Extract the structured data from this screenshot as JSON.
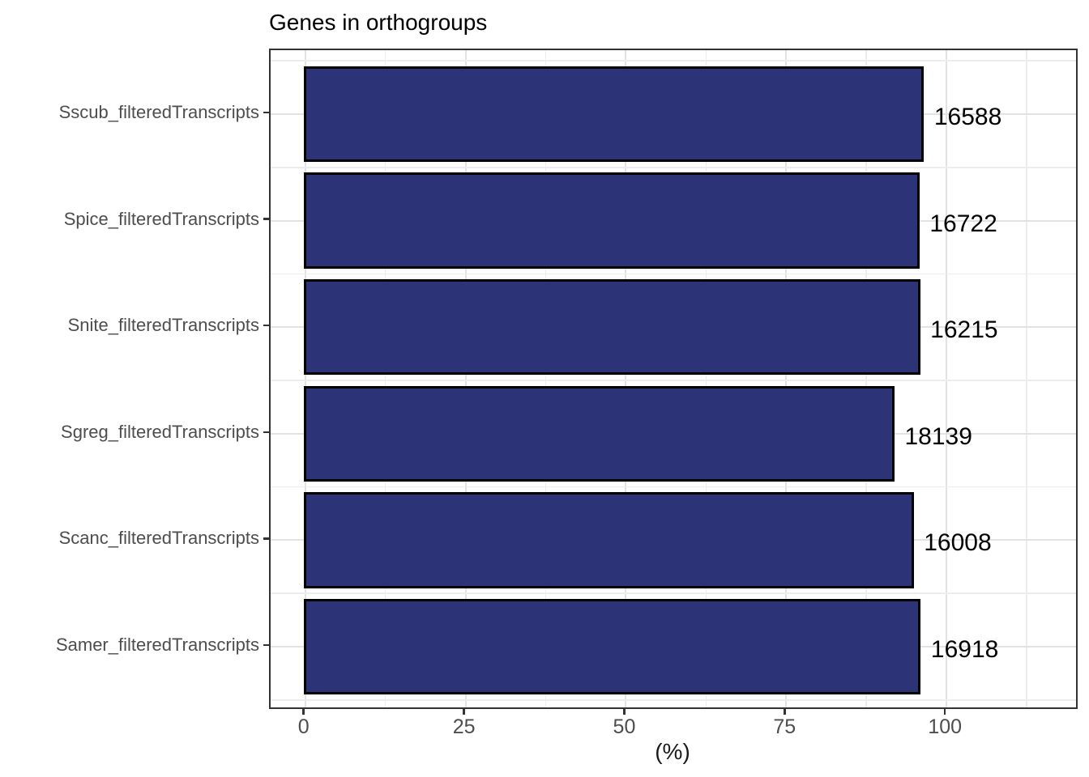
{
  "chart_data": {
    "type": "bar",
    "orientation": "horizontal",
    "title": "Genes in orthogroups",
    "xlabel": "(%)",
    "ylabel": "",
    "categories": [
      "Sscub_filteredTranscripts",
      "Spice_filteredTranscripts",
      "Snite_filteredTranscripts",
      "Sgreg_filteredTranscripts",
      "Scanc_filteredTranscripts",
      "Samer_filteredTranscripts"
    ],
    "series": [
      {
        "name": "percent_genes_in_orthogroups",
        "values": [
          96.3,
          95.6,
          95.7,
          91.7,
          94.7,
          95.8
        ]
      }
    ],
    "bar_labels": [
      "16588",
      "16722",
      "16215",
      "18139",
      "16008",
      "16918"
    ],
    "x_tick_labels": [
      "0",
      "25",
      "50",
      "75",
      "100"
    ],
    "x_tick_values": [
      0,
      25,
      50,
      75,
      100
    ],
    "x_minor_tick_values": [
      12.5,
      37.5,
      62.5,
      87.5,
      112.5
    ],
    "x_domain": [
      -5.4,
      120.7
    ],
    "grid": true,
    "legend": "none",
    "colors": {
      "bar_fill": "#2D3377",
      "bar_border": "#000000",
      "grid_major": "#E2E2E2",
      "grid_minor": "#EDEDED",
      "axis_text": "#4D4D4D",
      "panel_border": "#333333",
      "title_text": "#000000",
      "value_label_text": "#000000"
    }
  }
}
